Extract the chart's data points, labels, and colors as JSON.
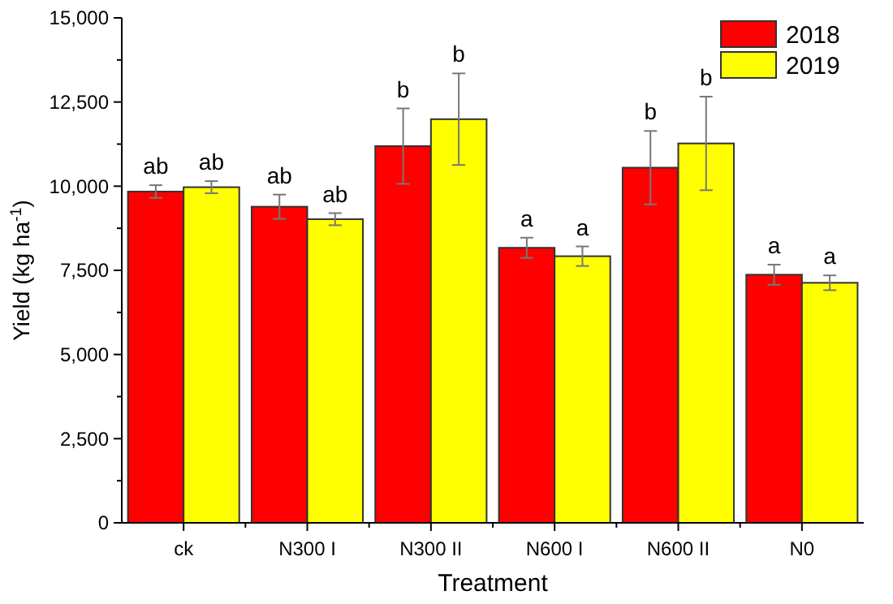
{
  "chart_data": {
    "type": "bar",
    "xlabel": "Treatment",
    "ylabel": "Yield (kg ha$^{-1}$)",
    "categories": [
      "ck",
      "N300 I",
      "N300 II",
      "N600 I",
      "N600 II",
      "N0"
    ],
    "series": [
      {
        "name": "2018",
        "color": "#ff0000",
        "values": [
          9840,
          9390,
          11190,
          8170,
          10550,
          7370
        ],
        "errors": [
          190,
          360,
          1120,
          300,
          1090,
          300
        ],
        "value_labels": [
          "ab",
          "ab",
          "b",
          "a",
          "b",
          "a"
        ]
      },
      {
        "name": "2019",
        "color": "#ffff00",
        "values": [
          9970,
          9020,
          11990,
          7920,
          11270,
          7130
        ],
        "errors": [
          180,
          180,
          1360,
          290,
          1390,
          220
        ],
        "value_labels": [
          "ab",
          "ab",
          "b",
          "a",
          "b",
          "a"
        ]
      }
    ],
    "ylim": [
      0,
      15000
    ],
    "yticks": [
      {
        "value": 0,
        "label": "0"
      },
      {
        "value": 1250,
        "label": null
      },
      {
        "value": 2500,
        "label": "2,500"
      },
      {
        "value": 3750,
        "label": null
      },
      {
        "value": 5000,
        "label": "5,000"
      },
      {
        "value": 6250,
        "label": null
      },
      {
        "value": 7500,
        "label": "7,500"
      },
      {
        "value": 8750,
        "label": null
      },
      {
        "value": 10000,
        "label": "10,000"
      },
      {
        "value": 11250,
        "label": null
      },
      {
        "value": 12500,
        "label": "12,500"
      },
      {
        "value": 13750,
        "label": null
      },
      {
        "value": 15000,
        "label": "15,000"
      }
    ],
    "legend": "top right",
    "grid": false
  }
}
